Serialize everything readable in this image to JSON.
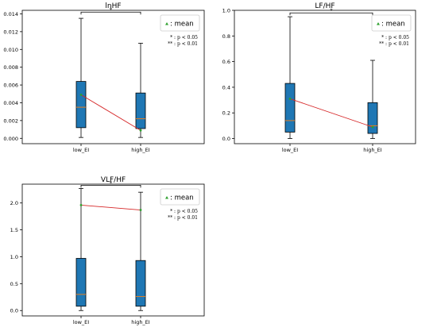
{
  "chart_data": [
    {
      "type": "box",
      "title": "lnHF",
      "categories": [
        "low_EI",
        "high_EI"
      ],
      "ylim": [
        -0.0006,
        0.0144
      ],
      "yticks": [
        0.0,
        0.002,
        0.004,
        0.006,
        0.008,
        0.01,
        0.012,
        0.014
      ],
      "ytick_labels": [
        "0.000",
        "0.002",
        "0.004",
        "0.006",
        "0.008",
        "0.010",
        "0.012",
        "0.014"
      ],
      "boxes": [
        {
          "category": "low_EI",
          "whisker_low": 0.0001,
          "q1": 0.0012,
          "median": 0.0035,
          "q3": 0.0064,
          "whisker_high": 0.0135,
          "mean": 0.0049
        },
        {
          "category": "high_EI",
          "whisker_low": 0.0001,
          "q1": 0.0011,
          "median": 0.0022,
          "q3": 0.0051,
          "whisker_high": 0.0107,
          "mean": 0.0009
        }
      ],
      "significance": {
        "label": "*",
        "y": 0.0142
      },
      "legend": {
        "label": ": mean",
        "position": "top-right"
      },
      "notes": [
        "* : p < 0.05",
        "** : p < 0.01"
      ],
      "grid": false
    },
    {
      "type": "box",
      "title": "LF/HF",
      "categories": [
        "low_EI",
        "high_EI"
      ],
      "ylim": [
        -0.04,
        1.0
      ],
      "yticks": [
        0.0,
        0.2,
        0.4,
        0.6,
        0.8,
        1.0
      ],
      "ytick_labels": [
        "0.0",
        "0.2",
        "0.4",
        "0.6",
        "0.8",
        "1.0"
      ],
      "boxes": [
        {
          "category": "low_EI",
          "whisker_low": 0.0,
          "q1": 0.05,
          "median": 0.14,
          "q3": 0.43,
          "whisker_high": 0.95,
          "mean": 0.31
        },
        {
          "category": "high_EI",
          "whisker_low": 0.0,
          "q1": 0.04,
          "median": 0.1,
          "q3": 0.28,
          "whisker_high": 0.61,
          "mean": 0.09
        }
      ],
      "significance": {
        "label": "*",
        "y": 0.98
      },
      "legend": {
        "label": ": mean",
        "position": "top-right"
      },
      "notes": [
        "* : p < 0.05",
        "** : p < 0.01"
      ],
      "grid": false
    },
    {
      "type": "box",
      "title": "VLF/HF",
      "categories": [
        "low_EI",
        "high_EI"
      ],
      "ylim": [
        -0.1,
        2.35
      ],
      "yticks": [
        0.0,
        0.5,
        1.0,
        1.5,
        2.0
      ],
      "ytick_labels": [
        "0.0",
        "0.5",
        "1.0",
        "1.5",
        "2.0"
      ],
      "boxes": [
        {
          "category": "low_EI",
          "whisker_low": 0.0,
          "q1": 0.08,
          "median": 0.3,
          "q3": 0.97,
          "whisker_high": 2.27,
          "mean": 1.96
        },
        {
          "category": "high_EI",
          "whisker_low": 0.0,
          "q1": 0.08,
          "median": 0.26,
          "q3": 0.93,
          "whisker_high": 2.2,
          "mean": 1.87
        }
      ],
      "significance": {
        "label": "*",
        "y": 2.33
      },
      "legend": {
        "label": ": mean",
        "position": "top-right"
      },
      "notes": [
        "* : p < 0.05",
        "** : p < 0.01"
      ],
      "grid": false
    }
  ],
  "colors": {
    "box_fill": "#1f77b4",
    "box_edge": "#000000",
    "median": "#ff7f0e",
    "mean_line": "#d62728",
    "mean_marker": "#2ca02c"
  }
}
